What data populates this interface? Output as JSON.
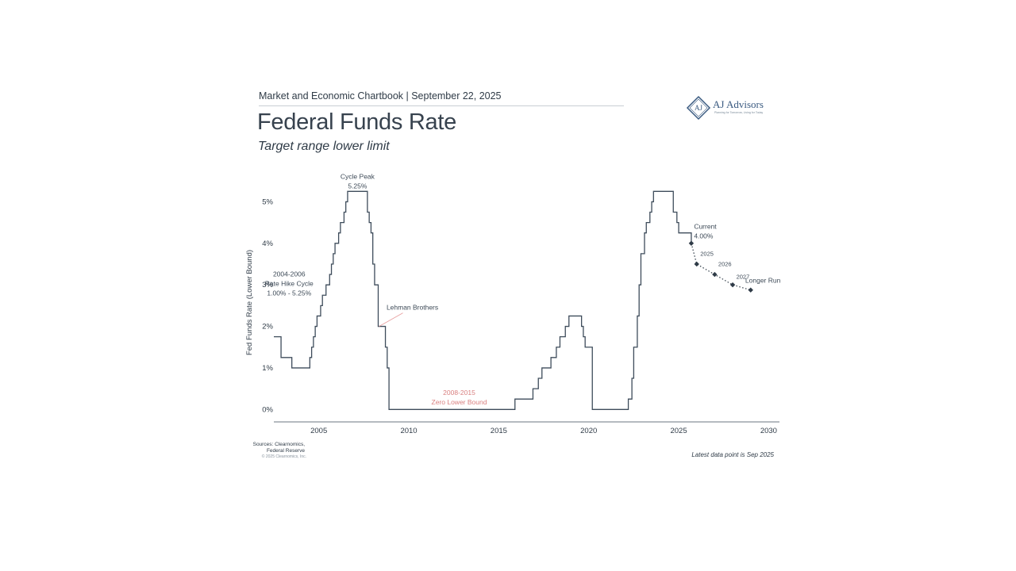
{
  "header": {
    "chartbook": "Market and Economic Chartbook | September 22, 2025",
    "title": "Federal Funds Rate",
    "subtitle": "Target range lower limit"
  },
  "logo": {
    "name": "AJ Advisors",
    "tagline": "Planning for Tomorrow, Living for Today",
    "monogram": "AJ"
  },
  "footer": {
    "sources_line1": "Sources: Clearnomics,",
    "sources_line2": "Federal Reserve",
    "copyright": "© 2025 Clearnomics, Inc.",
    "latest": "Latest data point is Sep 2025"
  },
  "colors": {
    "line": "#3e4c5b",
    "annotation": "#3d4a57",
    "zero_bound": "#d98080",
    "lehman_pointer": "#e8a0a0",
    "axis": "#6b7680",
    "logo": "#3a5a80"
  },
  "chart_data": {
    "type": "line",
    "title": "Federal Funds Rate",
    "subtitle": "Target range lower limit",
    "xlabel": "",
    "ylabel": "Fed Funds Rate (Lower Bound)",
    "xlim": [
      2002.5,
      2030.6
    ],
    "ylim": [
      -0.3,
      5.6
    ],
    "y_ticks": [
      0,
      1,
      2,
      3,
      4,
      5
    ],
    "y_tick_labels": [
      "0%",
      "1%",
      "2%",
      "3%",
      "4%",
      "5%"
    ],
    "x_ticks": [
      2005,
      2010,
      2015,
      2020,
      2025,
      2030
    ],
    "x_tick_labels": [
      "2005",
      "2010",
      "2015",
      "2020",
      "2025",
      "2030"
    ],
    "grid": false,
    "series": [
      {
        "name": "",
        "style": "step",
        "points": [
          [
            2002.5,
            1.75
          ],
          [
            2002.9,
            1.25
          ],
          [
            2003.5,
            1.0
          ],
          [
            2004.5,
            1.25
          ],
          [
            2004.6,
            1.5
          ],
          [
            2004.7,
            1.75
          ],
          [
            2004.8,
            2.0
          ],
          [
            2004.9,
            2.25
          ],
          [
            2005.1,
            2.5
          ],
          [
            2005.2,
            2.75
          ],
          [
            2005.4,
            3.0
          ],
          [
            2005.6,
            3.25
          ],
          [
            2005.7,
            3.5
          ],
          [
            2005.8,
            3.75
          ],
          [
            2005.9,
            4.0
          ],
          [
            2006.1,
            4.25
          ],
          [
            2006.2,
            4.5
          ],
          [
            2006.4,
            4.75
          ],
          [
            2006.5,
            5.0
          ],
          [
            2006.6,
            5.25
          ],
          [
            2007.7,
            4.75
          ],
          [
            2007.8,
            4.5
          ],
          [
            2007.9,
            4.25
          ],
          [
            2008.0,
            3.5
          ],
          [
            2008.1,
            3.0
          ],
          [
            2008.3,
            2.0
          ],
          [
            2008.7,
            1.5
          ],
          [
            2008.8,
            1.0
          ],
          [
            2008.9,
            0.0
          ],
          [
            2015.9,
            0.25
          ],
          [
            2016.9,
            0.5
          ],
          [
            2017.2,
            0.75
          ],
          [
            2017.4,
            1.0
          ],
          [
            2017.9,
            1.25
          ],
          [
            2018.2,
            1.5
          ],
          [
            2018.4,
            1.75
          ],
          [
            2018.7,
            2.0
          ],
          [
            2018.9,
            2.25
          ],
          [
            2019.6,
            2.0
          ],
          [
            2019.7,
            1.75
          ],
          [
            2019.8,
            1.5
          ],
          [
            2020.2,
            0.0
          ],
          [
            2022.2,
            0.25
          ],
          [
            2022.4,
            0.75
          ],
          [
            2022.5,
            1.5
          ],
          [
            2022.7,
            2.25
          ],
          [
            2022.8,
            3.0
          ],
          [
            2022.9,
            3.75
          ],
          [
            2023.1,
            4.25
          ],
          [
            2023.2,
            4.5
          ],
          [
            2023.4,
            4.75
          ],
          [
            2023.5,
            5.0
          ],
          [
            2023.6,
            5.25
          ],
          [
            2024.7,
            4.75
          ],
          [
            2024.9,
            4.5
          ],
          [
            2025.0,
            4.25
          ],
          [
            2025.7,
            4.0
          ]
        ],
        "end_x": 2025.75
      },
      {
        "name": "",
        "style": "dotted-projection",
        "points": [
          [
            2025.7,
            4.0
          ],
          [
            2026.0,
            3.5
          ],
          [
            2027.0,
            3.25
          ],
          [
            2028.0,
            3.0
          ],
          [
            2029.0,
            2.875
          ]
        ]
      }
    ],
    "annotations": [
      {
        "id": "cycle-peak",
        "line1": "Cycle Peak",
        "line2": "5.25%",
        "x": 2007.15,
        "y": 5.55
      },
      {
        "id": "rate-hike-cycle",
        "line1": "2004-2006",
        "line2": "Rate Hike Cycle",
        "line3": "1.00% - 5.25%",
        "x": 2003.35,
        "y": 3.2
      },
      {
        "id": "lehman-brothers",
        "line1": "Lehman Brothers",
        "x": 2010.2,
        "y": 2.4,
        "point_x": 2008.35,
        "point_y": 2.0
      },
      {
        "id": "zero-lower-bound",
        "line1": "2008-2015",
        "line2": "Zero Lower Bound",
        "x": 2012.8,
        "y": 0.35
      },
      {
        "id": "current",
        "line1": "Current",
        "line2": "4.00%",
        "x": 2025.85,
        "y": 4.35
      },
      {
        "id": "proj-2025",
        "line1": "2025",
        "x": 2026.2,
        "y": 3.7
      },
      {
        "id": "proj-2026",
        "line1": "2026",
        "x": 2027.2,
        "y": 3.45
      },
      {
        "id": "proj-2027",
        "line1": "2027",
        "x": 2028.2,
        "y": 3.15
      },
      {
        "id": "longer-run",
        "line1": "Longer Run",
        "x": 2028.7,
        "y": 3.05
      }
    ]
  }
}
